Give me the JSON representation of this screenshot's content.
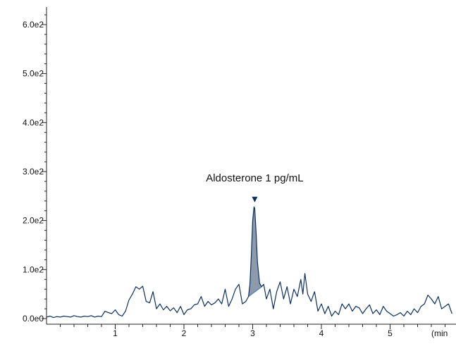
{
  "chart_data": {
    "type": "line",
    "title": "",
    "xlabel": "",
    "ylabel": "",
    "x_unit_label": "(min",
    "xlim": [
      0,
      5.9
    ],
    "ylim": [
      0,
      620
    ],
    "x_ticks": [
      1,
      2,
      3,
      4,
      5
    ],
    "x_tick_labels": [
      "1",
      "2",
      "3",
      "4",
      "5"
    ],
    "y_ticks": [
      0,
      100,
      200,
      300,
      400,
      500,
      600
    ],
    "y_tick_labels": [
      "0.0e0",
      "1.0e2",
      "2.0e2",
      "3.0e2",
      "4.0e2",
      "5.0e2",
      "6.0e2"
    ],
    "grid": false,
    "colors": {
      "trace": "#0b2f62",
      "peak_fill": "#8d9aab",
      "axis": "#222222",
      "marker": "#0b2f62"
    },
    "annotation": {
      "text": "Aldosterone 1 pg/mL",
      "x": 3.03,
      "y": 240
    },
    "peak_area": {
      "x": [
        2.94,
        2.96,
        2.98,
        3.0,
        3.02,
        3.03,
        3.05,
        3.07,
        3.1,
        3.13
      ],
      "y": [
        45,
        70,
        130,
        200,
        228,
        225,
        175,
        115,
        72,
        65
      ],
      "baseline": [
        [
          2.94,
          45
        ],
        [
          3.13,
          65
        ]
      ]
    },
    "series": [
      {
        "x": [
          0.0,
          0.05,
          0.1,
          0.15,
          0.2,
          0.25,
          0.3,
          0.35,
          0.4,
          0.45,
          0.5,
          0.55,
          0.6,
          0.65,
          0.7,
          0.75,
          0.8,
          0.85,
          0.9,
          0.95,
          1.0,
          1.05,
          1.1,
          1.15,
          1.2,
          1.25,
          1.3,
          1.35,
          1.4,
          1.45,
          1.5,
          1.55,
          1.6,
          1.65,
          1.7,
          1.75,
          1.8,
          1.85,
          1.9,
          1.95,
          2.0,
          2.05,
          2.1,
          2.15,
          2.2,
          2.25,
          2.3,
          2.35,
          2.4,
          2.45,
          2.5,
          2.55,
          2.6,
          2.65,
          2.7,
          2.75,
          2.8,
          2.85,
          2.9,
          2.94,
          2.96,
          2.98,
          3.0,
          3.02,
          3.03,
          3.05,
          3.07,
          3.1,
          3.13,
          3.16,
          3.2,
          3.25,
          3.3,
          3.35,
          3.4,
          3.45,
          3.5,
          3.55,
          3.6,
          3.65,
          3.7,
          3.73,
          3.76,
          3.8,
          3.85,
          3.9,
          3.95,
          4.0,
          4.05,
          4.1,
          4.15,
          4.2,
          4.25,
          4.3,
          4.35,
          4.4,
          4.45,
          4.5,
          4.55,
          4.6,
          4.65,
          4.7,
          4.75,
          4.8,
          4.85,
          4.9,
          4.95,
          5.0,
          5.05,
          5.1,
          5.15,
          5.2,
          5.25,
          5.3,
          5.35,
          5.4,
          5.45,
          5.5,
          5.55,
          5.6,
          5.65,
          5.7,
          5.75,
          5.8,
          5.85,
          5.9
        ],
        "y": [
          3,
          5,
          2,
          4,
          3,
          5,
          4,
          3,
          6,
          4,
          3,
          5,
          4,
          6,
          3,
          5,
          4,
          15,
          12,
          10,
          18,
          8,
          5,
          15,
          38,
          50,
          65,
          60,
          66,
          35,
          32,
          55,
          20,
          30,
          18,
          25,
          16,
          22,
          12,
          25,
          8,
          18,
          20,
          28,
          30,
          45,
          25,
          35,
          28,
          32,
          40,
          30,
          60,
          25,
          40,
          60,
          70,
          30,
          35,
          45,
          70,
          130,
          200,
          228,
          225,
          175,
          115,
          72,
          65,
          70,
          40,
          60,
          20,
          55,
          75,
          40,
          65,
          30,
          60,
          45,
          80,
          50,
          92,
          50,
          35,
          55,
          15,
          30,
          10,
          25,
          5,
          15,
          8,
          30,
          20,
          30,
          15,
          25,
          22,
          10,
          20,
          28,
          10,
          18,
          8,
          25,
          15,
          10,
          5,
          8,
          12,
          5,
          15,
          8,
          20,
          12,
          25,
          30,
          48,
          40,
          30,
          45,
          20,
          25,
          30,
          10
        ]
      }
    ]
  }
}
